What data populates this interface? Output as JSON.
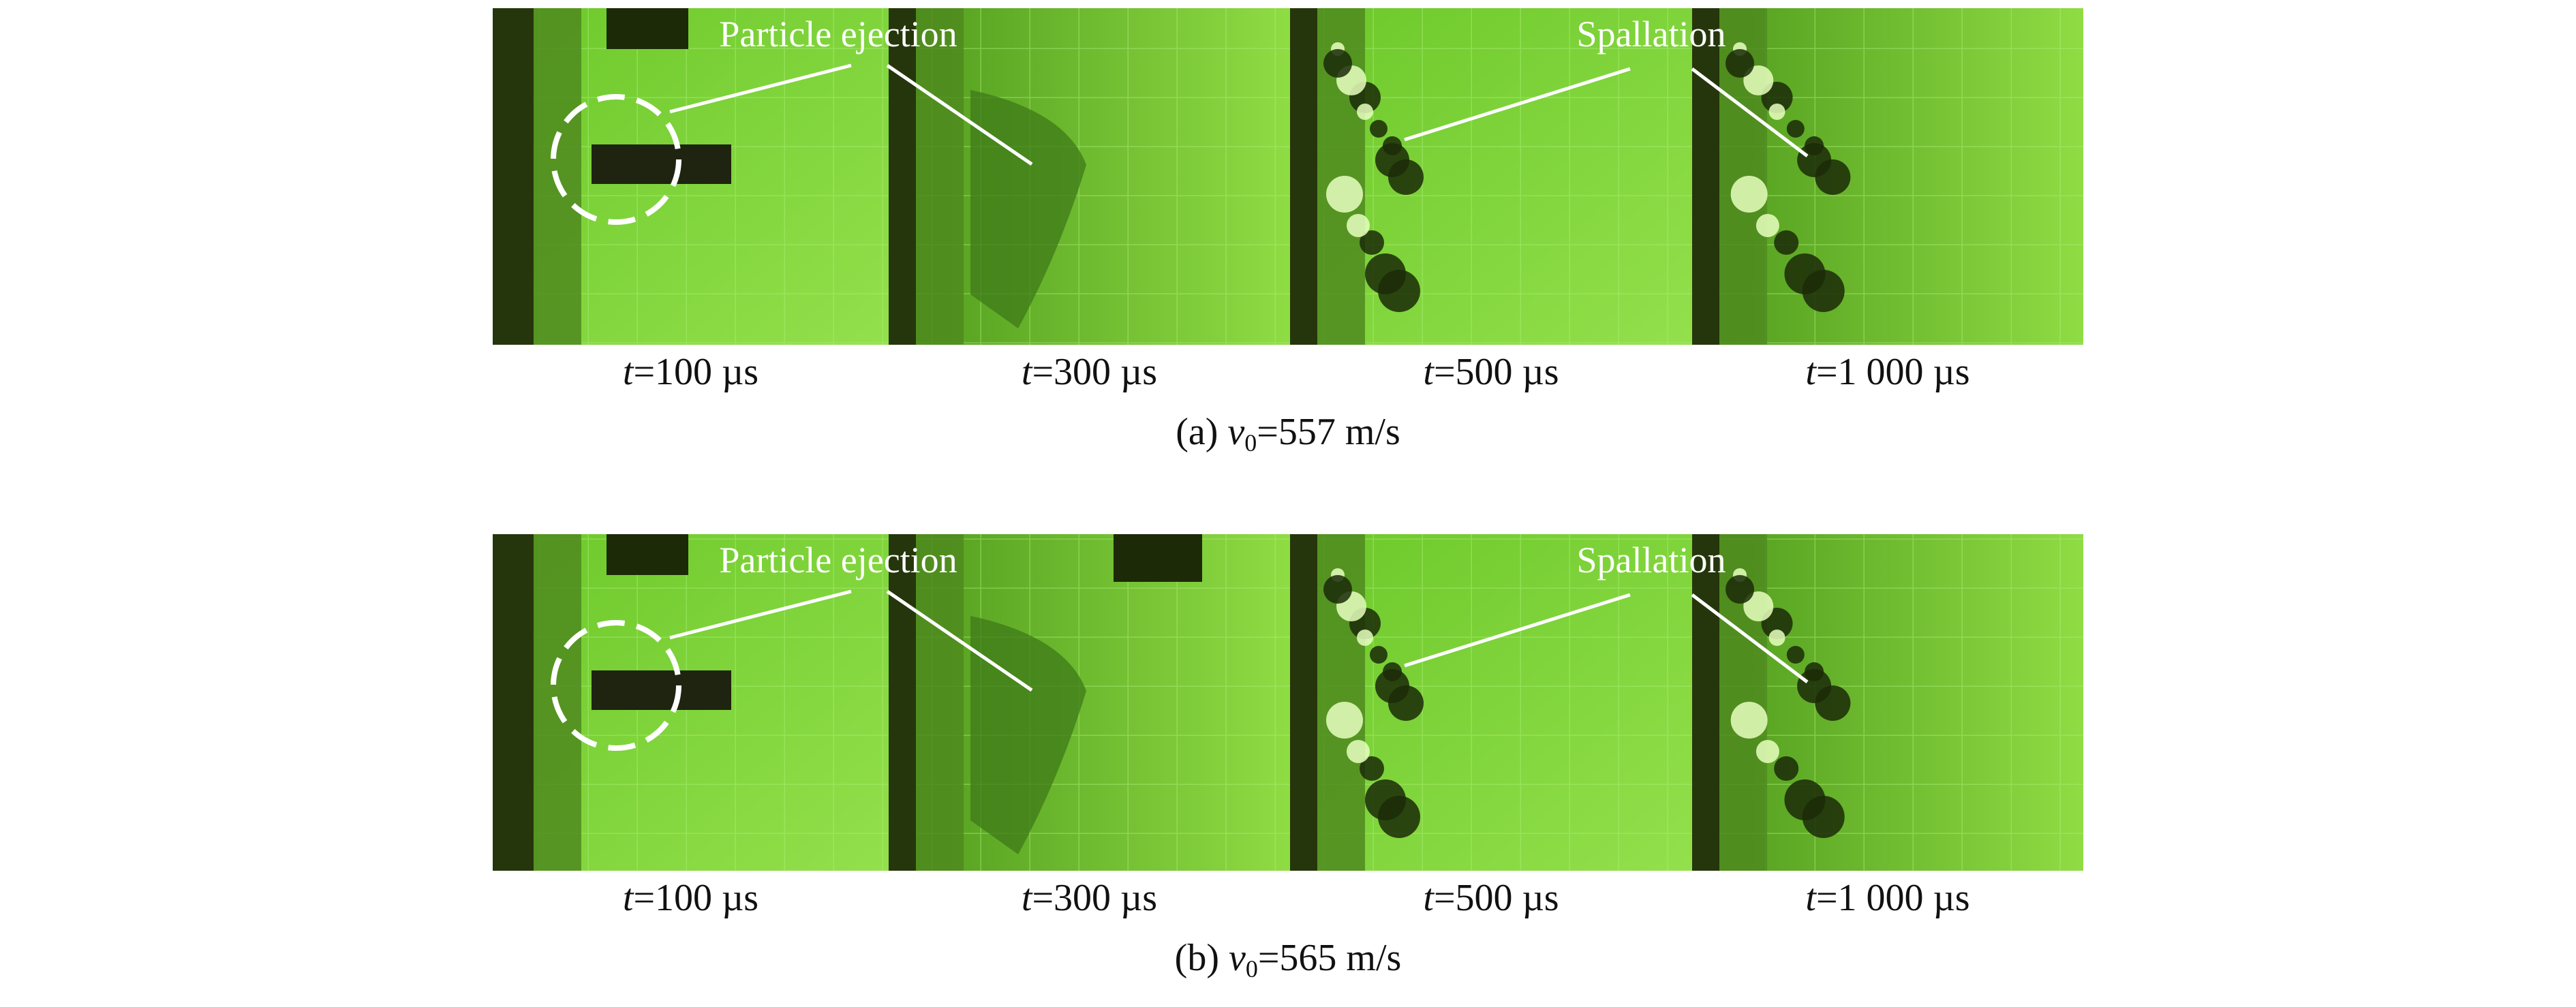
{
  "panels": [
    {
      "frames": [
        {
          "var": "t",
          "label": "=100 µs"
        },
        {
          "var": "t",
          "label": "=300 µs"
        },
        {
          "var": "t",
          "label": "=500 µs"
        },
        {
          "var": "t",
          "label": "=1 000 µs"
        }
      ],
      "annotations": [
        "Particle ejection",
        "Spallation"
      ],
      "caption": {
        "prefix": "(a)",
        "var": "v",
        "sub": "0",
        "suffix": "=557 m/s"
      }
    },
    {
      "frames": [
        {
          "var": "t",
          "label": "=100 µs"
        },
        {
          "var": "t",
          "label": "=300 µs"
        },
        {
          "var": "t",
          "label": "=500 µs"
        },
        {
          "var": "t",
          "label": "=1 000 µs"
        }
      ],
      "annotations": [
        "Particle ejection",
        "Spallation"
      ],
      "caption": {
        "prefix": "(b)",
        "var": "v",
        "sub": "0",
        "suffix": "=565 m/s"
      }
    }
  ]
}
